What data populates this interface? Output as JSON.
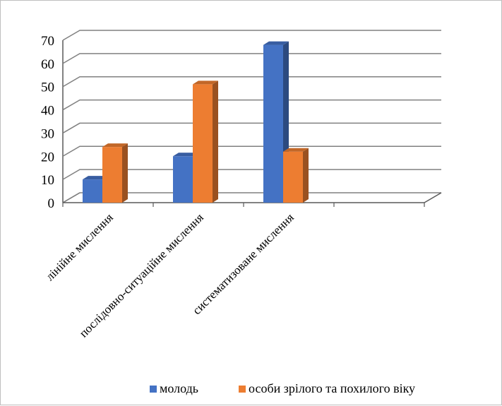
{
  "chart_data": {
    "type": "bar",
    "title": "",
    "xlabel": "",
    "ylabel": "",
    "categories": [
      "лінійне  мислення",
      "послідовно-ситуаційне мислення",
      "систематизоване мислення",
      ""
    ],
    "series": [
      {
        "name": "молодь",
        "values": [
          10,
          20,
          68,
          null
        ],
        "color": "#4472c4"
      },
      {
        "name": "особи зрілого та похилого віку",
        "values": [
          24,
          51,
          22,
          null
        ],
        "color": "#ed7d31"
      }
    ],
    "y_ticks": [
      0,
      10,
      20,
      30,
      40,
      50,
      60,
      70
    ],
    "ylim": [
      0,
      70
    ],
    "grid": true,
    "legend": "bottom"
  }
}
